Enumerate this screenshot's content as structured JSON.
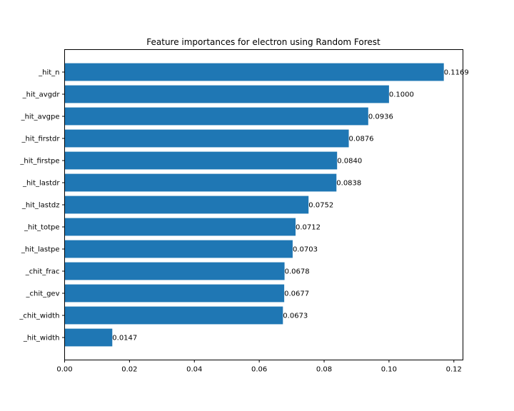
{
  "chart_data": {
    "type": "bar",
    "orientation": "horizontal",
    "title": "Feature importances for electron using Random Forest",
    "xlabel": "",
    "ylabel": "",
    "xlim": [
      0,
      0.1228
    ],
    "xticks": [
      0.0,
      0.02,
      0.04,
      0.06,
      0.08,
      0.1,
      0.12
    ],
    "xtick_labels": [
      "0.00",
      "0.02",
      "0.04",
      "0.06",
      "0.08",
      "0.10",
      "0.12"
    ],
    "categories": [
      "_hit_n",
      "_hit_avgdr",
      "_hit_avgpe",
      "_hit_firstdr",
      "_hit_firstpe",
      "_hit_lastdr",
      "_hit_lastdz",
      "_hit_totpe",
      "_hit_lastpe",
      "_chit_frac",
      "_chit_gev",
      "_chit_width",
      "_hit_width"
    ],
    "values": [
      0.1169,
      0.1,
      0.0936,
      0.0876,
      0.084,
      0.0838,
      0.0752,
      0.0712,
      0.0703,
      0.0678,
      0.0677,
      0.0673,
      0.0147
    ],
    "value_labels": [
      "0.1169",
      "0.1000",
      "0.0936",
      "0.0876",
      "0.0840",
      "0.0838",
      "0.0752",
      "0.0712",
      "0.0703",
      "0.0678",
      "0.0677",
      "0.0673",
      "0.0147"
    ],
    "bar_color": "#1f77b4",
    "grid": false,
    "legend": "none"
  }
}
